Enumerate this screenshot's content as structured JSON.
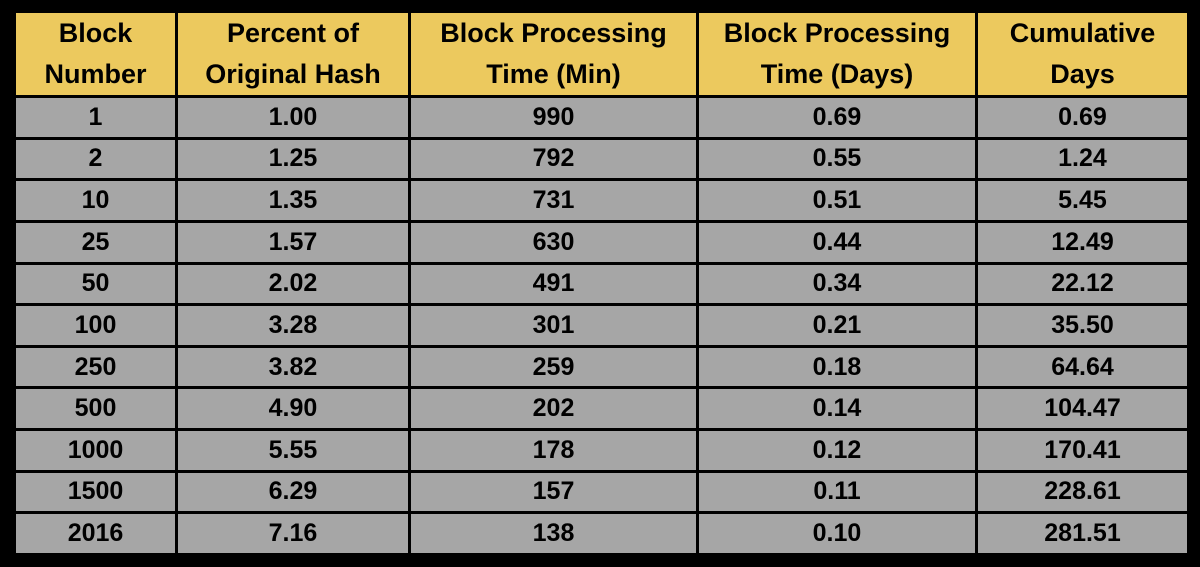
{
  "chart_data": {
    "type": "table",
    "columns": [
      {
        "line1": "Block",
        "line2": "Number"
      },
      {
        "line1": "Percent of",
        "line2": "Original Hash"
      },
      {
        "line1": "Block Processing",
        "line2": "Time (Min)"
      },
      {
        "line1": "Block Processing",
        "line2": "Time (Days)"
      },
      {
        "line1": "Cumulative",
        "line2": "Days"
      }
    ],
    "rows": [
      [
        "1",
        "1.00",
        "990",
        "0.69",
        "0.69"
      ],
      [
        "2",
        "1.25",
        "792",
        "0.55",
        "1.24"
      ],
      [
        "10",
        "1.35",
        "731",
        "0.51",
        "5.45"
      ],
      [
        "25",
        "1.57",
        "630",
        "0.44",
        "12.49"
      ],
      [
        "50",
        "2.02",
        "491",
        "0.34",
        "22.12"
      ],
      [
        "100",
        "3.28",
        "301",
        "0.21",
        "35.50"
      ],
      [
        "250",
        "3.82",
        "259",
        "0.18",
        "64.64"
      ],
      [
        "500",
        "4.90",
        "202",
        "0.14",
        "104.47"
      ],
      [
        "1000",
        "5.55",
        "178",
        "0.12",
        "170.41"
      ],
      [
        "1500",
        "6.29",
        "157",
        "0.11",
        "228.61"
      ],
      [
        "2016",
        "7.16",
        "138",
        "0.10",
        "281.51"
      ]
    ],
    "colors": {
      "header_fill": "#ecc95e",
      "cell_fill": "#a6a6a6",
      "border": "#000000"
    }
  }
}
